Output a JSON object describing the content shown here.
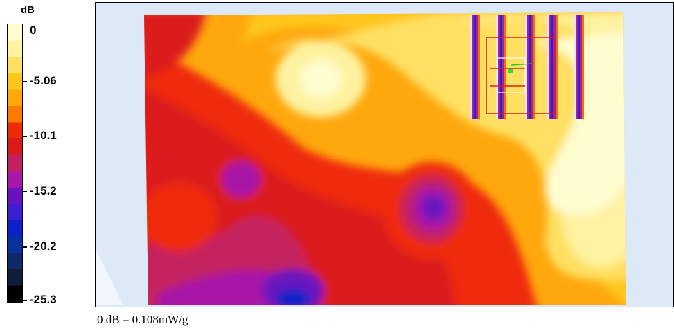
{
  "chart_data": {
    "type": "heatmap",
    "colorbar": {
      "unit": "dB",
      "ticks": [
        "0",
        "-5.06",
        "-10.1",
        "-15.2",
        "-20.2",
        "-25.3"
      ],
      "range": [
        -25.3,
        0
      ],
      "levels": [
        "#fffccf",
        "#fff2a0",
        "#ffe062",
        "#ffc71c",
        "#ffa80e",
        "#ff7a00",
        "#ef2a08",
        "#dc1a1a",
        "#c4205f",
        "#a818a8",
        "#6a12bf",
        "#3d1fd0",
        "#0a22c8",
        "#07329a",
        "#0e2a6a",
        "#101c3a",
        "#000000"
      ]
    },
    "footnote": "0 dB = 0.108mW/g"
  }
}
